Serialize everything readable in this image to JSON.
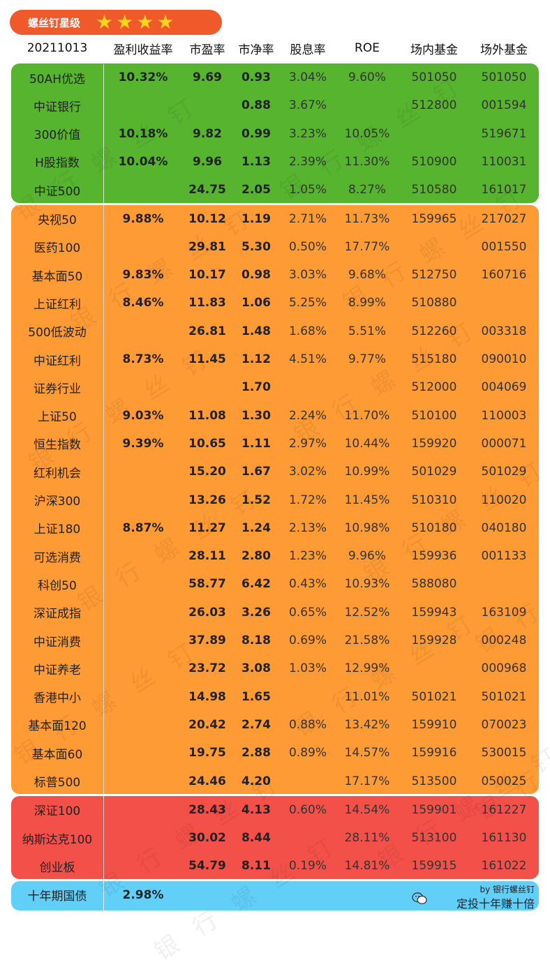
{
  "badge": {
    "title": "螺丝钉星级",
    "stars": 4
  },
  "header": {
    "date": "20211013",
    "columns": [
      "盈利收益率",
      "市盈率",
      "市净率",
      "股息率",
      "ROE",
      "场内基金",
      "场外基金"
    ]
  },
  "colors": {
    "green": "#57b42f",
    "orange": "#ff9b35",
    "red": "#f4504a",
    "blue": "#62cff9",
    "badge": "#f05a2a",
    "star": "#ffd21e"
  },
  "groups": [
    {
      "color": "green",
      "rows": [
        [
          "50AH优选",
          "10.32%",
          "9.69",
          "0.93",
          "3.04%",
          "9.60%",
          "501050",
          "501050"
        ],
        [
          "中证银行",
          "",
          "",
          "0.88",
          "3.67%",
          "",
          "512800",
          "001594"
        ],
        [
          "300价值",
          "10.18%",
          "9.82",
          "0.99",
          "3.23%",
          "10.05%",
          "",
          "519671"
        ],
        [
          "H股指数",
          "10.04%",
          "9.96",
          "1.13",
          "2.39%",
          "11.30%",
          "510900",
          "110031"
        ],
        [
          "中证500",
          "",
          "24.75",
          "2.05",
          "1.05%",
          "8.27%",
          "510580",
          "161017"
        ]
      ]
    },
    {
      "color": "orange",
      "rows": [
        [
          "央视50",
          "9.88%",
          "10.12",
          "1.19",
          "2.71%",
          "11.73%",
          "159965",
          "217027"
        ],
        [
          "医药100",
          "",
          "29.81",
          "5.30",
          "0.50%",
          "17.77%",
          "",
          "001550"
        ],
        [
          "基本面50",
          "9.83%",
          "10.17",
          "0.98",
          "3.03%",
          "9.68%",
          "512750",
          "160716"
        ],
        [
          "上证红利",
          "8.46%",
          "11.83",
          "1.06",
          "5.25%",
          "8.99%",
          "510880",
          ""
        ],
        [
          "500低波动",
          "",
          "26.81",
          "1.48",
          "1.68%",
          "5.51%",
          "512260",
          "003318"
        ],
        [
          "中证红利",
          "8.73%",
          "11.45",
          "1.12",
          "4.51%",
          "9.77%",
          "515180",
          "090010"
        ],
        [
          "证券行业",
          "",
          "",
          "1.70",
          "",
          "",
          "512000",
          "004069"
        ],
        [
          "上证50",
          "9.03%",
          "11.08",
          "1.30",
          "2.24%",
          "11.70%",
          "510100",
          "110003"
        ],
        [
          "恒生指数",
          "9.39%",
          "10.65",
          "1.11",
          "2.97%",
          "10.44%",
          "159920",
          "000071"
        ],
        [
          "红利机会",
          "",
          "15.20",
          "1.67",
          "3.02%",
          "10.99%",
          "501029",
          "501029"
        ],
        [
          "沪深300",
          "",
          "13.26",
          "1.52",
          "1.72%",
          "11.45%",
          "510310",
          "110020"
        ],
        [
          "上证180",
          "8.87%",
          "11.27",
          "1.24",
          "2.13%",
          "10.98%",
          "510180",
          "040180"
        ],
        [
          "可选消费",
          "",
          "28.11",
          "2.80",
          "1.23%",
          "9.96%",
          "159936",
          "001133"
        ],
        [
          "科创50",
          "",
          "58.77",
          "6.42",
          "0.43%",
          "10.93%",
          "588080",
          ""
        ],
        [
          "深证成指",
          "",
          "26.03",
          "3.26",
          "0.65%",
          "12.52%",
          "159943",
          "163109"
        ],
        [
          "中证消费",
          "",
          "37.89",
          "8.18",
          "0.69%",
          "21.58%",
          "159928",
          "000248"
        ],
        [
          "中证养老",
          "",
          "23.72",
          "3.08",
          "1.03%",
          "12.99%",
          "",
          "000968"
        ],
        [
          "香港中小",
          "",
          "14.98",
          "1.65",
          "",
          "11.01%",
          "501021",
          "501021"
        ],
        [
          "基本面120",
          "",
          "20.42",
          "2.74",
          "0.88%",
          "13.42%",
          "159910",
          "070023"
        ],
        [
          "基本面60",
          "",
          "19.75",
          "2.88",
          "0.89%",
          "14.57%",
          "159916",
          "530015"
        ],
        [
          "标普500",
          "",
          "24.46",
          "4.20",
          "",
          "17.17%",
          "513500",
          "050025"
        ]
      ]
    },
    {
      "color": "red",
      "rows": [
        [
          "深证100",
          "",
          "28.43",
          "4.13",
          "0.60%",
          "14.54%",
          "159901",
          "161227"
        ],
        [
          "纳斯达克100",
          "",
          "30.02",
          "8.44",
          "",
          "28.11%",
          "513100",
          "161130"
        ],
        [
          "创业板",
          "",
          "54.79",
          "8.11",
          "0.19%",
          "14.81%",
          "159915",
          "161022"
        ]
      ]
    },
    {
      "color": "blue",
      "rows": [
        [
          "十年期国债",
          "2.98%",
          "",
          "",
          "",
          "",
          "",
          ""
        ]
      ]
    }
  ],
  "footer": {
    "by": "by 银行螺丝钉",
    "slogan": "定投十年赚十倍",
    "icon": "wechat-icon"
  },
  "watermark": "银 行 螺 丝 钉"
}
